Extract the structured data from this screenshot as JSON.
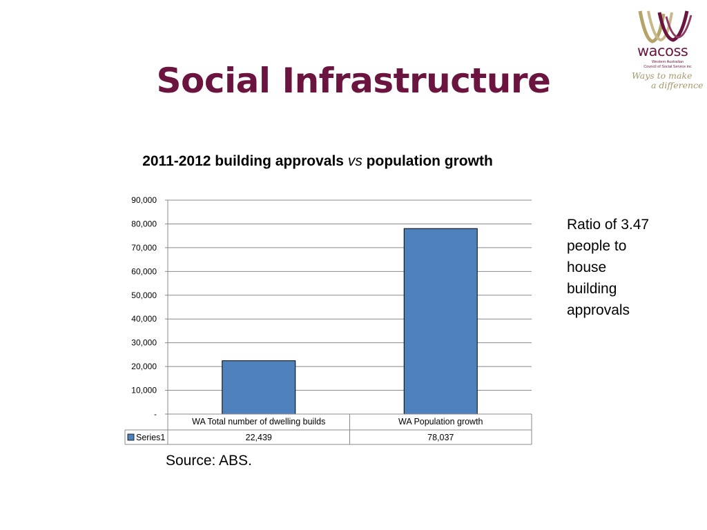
{
  "slide": {
    "title": "Social Infrastructure",
    "side_note": "Ratio of 3.47 people to house building approvals",
    "source": "Source: ABS."
  },
  "logo": {
    "name": "wacoss",
    "org_line1": "Western Australian",
    "org_line2": "Council of Social Service inc",
    "tagline_line1": "Ways to make",
    "tagline_line2": "a difference",
    "colors": {
      "primary": "#6b1440",
      "secondary": "#b5a46a"
    }
  },
  "chart_data": {
    "type": "bar",
    "title_part1": "2011-2012 building approvals ",
    "title_italic": "vs",
    "title_part2": " population growth",
    "categories": [
      "WA Total number of dwelling builds",
      "WA Population growth"
    ],
    "series": [
      {
        "name": "Series1",
        "values": [
          22439,
          78037
        ],
        "value_labels": [
          "22,439",
          "78,037"
        ],
        "color": "#4f81bd"
      }
    ],
    "ylim": [
      0,
      90000
    ],
    "y_ticks": [
      0,
      10000,
      20000,
      30000,
      40000,
      50000,
      60000,
      70000,
      80000,
      90000
    ],
    "y_tick_labels": [
      "-",
      "10,000",
      "20,000",
      "30,000",
      "40,000",
      "50,000",
      "60,000",
      "70,000",
      "80,000",
      "90,000"
    ],
    "grid": true,
    "data_table": true,
    "legend_placement": "data-table-left"
  }
}
